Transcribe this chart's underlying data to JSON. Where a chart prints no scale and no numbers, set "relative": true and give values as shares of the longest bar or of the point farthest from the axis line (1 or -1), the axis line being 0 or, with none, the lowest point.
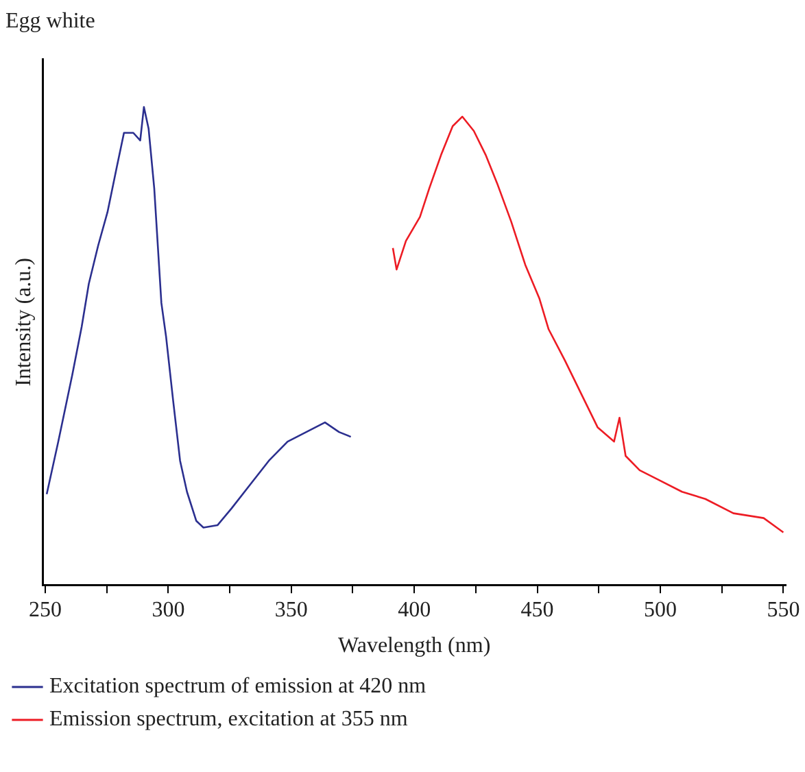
{
  "chart_data": {
    "type": "line",
    "title": "Egg white",
    "xlabel": "Wavelength (nm)",
    "ylabel": "Intensity (a.u.)",
    "relative": true,
    "xlim": [
      249,
      551
    ],
    "xticks": [
      250,
      {
        "value": 275,
        "label": null
      },
      300,
      {
        "value": 325,
        "label": null
      },
      350,
      {
        "value": 375,
        "label": null
      },
      400,
      {
        "value": 425,
        "label": null
      },
      450,
      {
        "value": 475,
        "label": null
      },
      500,
      {
        "value": 525,
        "label": null
      },
      550
    ],
    "legend": "bottom",
    "grid": false,
    "marker": "none",
    "line_style": "solid",
    "series": [
      {
        "name": "Excitation spectrum of emission at 420 nm",
        "color": "#2b2f8f",
        "x": [
          250.6,
          255.3,
          261,
          264.8,
          267.7,
          271.5,
          275.3,
          279.1,
          282,
          285.8,
          288.6,
          290.1,
          292,
          294.3,
          297.2,
          299.1,
          302,
          304.8,
          307.6,
          311.4,
          314.3,
          320,
          325.7,
          333.3,
          340.9,
          348.5,
          356.1,
          363.7,
          369.4,
          374.2
        ],
        "values": [
          0.19,
          0.3,
          0.44,
          0.54,
          0.63,
          0.71,
          0.78,
          0.875,
          0.946,
          0.946,
          0.93,
          1,
          0.955,
          0.83,
          0.59,
          0.52,
          0.385,
          0.26,
          0.195,
          0.134,
          0.12,
          0.125,
          0.16,
          0.21,
          0.26,
          0.3,
          0.32,
          0.34,
          0.32,
          0.31
        ]
      },
      {
        "name": "Emission spectrum, excitation at 355 nm",
        "color": "#ed1c24",
        "x": [
          391.3,
          392.8,
          396.6,
          402.3,
          406.1,
          410.9,
          415.6,
          419.5,
          424.2,
          429,
          433.7,
          439.4,
          445.1,
          450.8,
          454.6,
          461.2,
          468.8,
          474.5,
          481.2,
          483.4,
          485.9,
          491.6,
          499.3,
          508.8,
          518.3,
          529.7,
          542,
          550
        ],
        "values": [
          0.705,
          0.66,
          0.72,
          0.77,
          0.83,
          0.9,
          0.96,
          0.98,
          0.95,
          0.9,
          0.84,
          0.76,
          0.67,
          0.6,
          0.535,
          0.47,
          0.39,
          0.33,
          0.3,
          0.35,
          0.27,
          0.24,
          0.22,
          0.195,
          0.18,
          0.15,
          0.14,
          0.11
        ]
      }
    ]
  }
}
